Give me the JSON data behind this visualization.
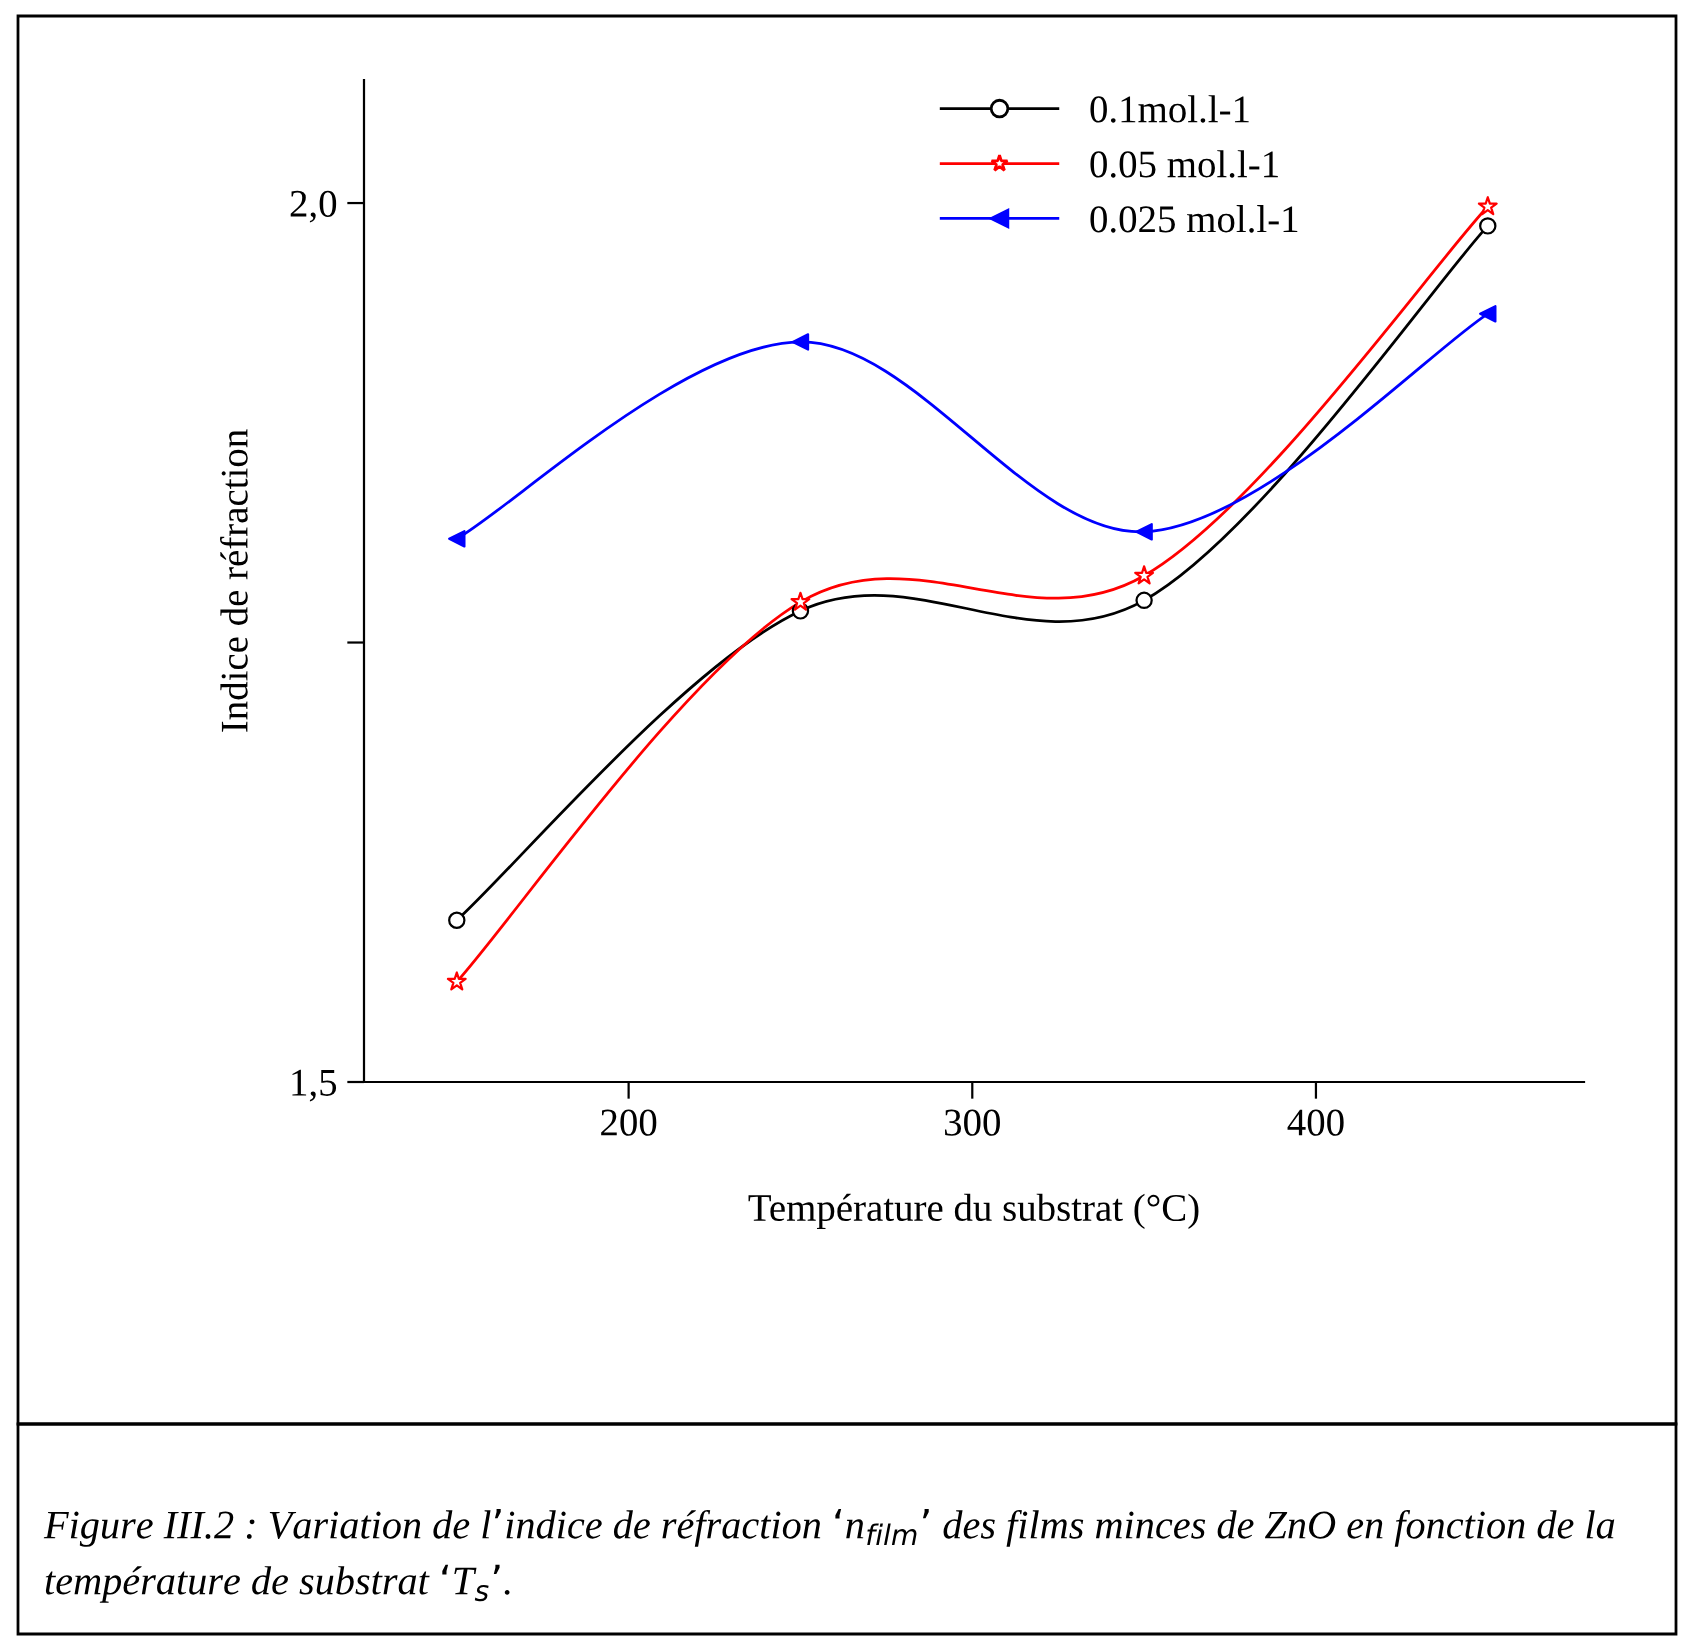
{
  "chart_data": {
    "type": "line",
    "xlabel": "Température du substrat (°C)",
    "ylabel": "Indice de réfraction",
    "x": [
      150,
      250,
      350,
      450
    ],
    "series": [
      {
        "name": "0.1mol.l-1",
        "color": "#000000",
        "marker": "circle",
        "values": [
          1.592,
          1.768,
          1.774,
          1.987
        ]
      },
      {
        "name": "0.05 mol.l-1",
        "color": "#ff0000",
        "marker": "star",
        "values": [
          1.557,
          1.773,
          1.788,
          1.998
        ]
      },
      {
        "name": "0.025 mol.l-1",
        "color": "#0000ff",
        "marker": "triangle",
        "values": [
          1.809,
          1.921,
          1.813,
          1.937
        ]
      }
    ],
    "xlim": [
      123,
      478
    ],
    "ylim": [
      1.5,
      2.07
    ],
    "xticks": [
      200,
      300,
      400
    ],
    "yticks": [
      {
        "value": 1.5,
        "label": "1,5"
      },
      {
        "value": 1.75,
        "label": null
      },
      {
        "value": 2.0,
        "label": "2,0"
      }
    ],
    "legend": "top",
    "grid": false,
    "line_style": "solid",
    "annotations": [
      "Figure III.2 : Variation de l’indice de réfraction ‘n$_{film}$’ des films minces de ZnO en fonction de la température de substrat ‘T$_{s}$’."
    ]
  }
}
